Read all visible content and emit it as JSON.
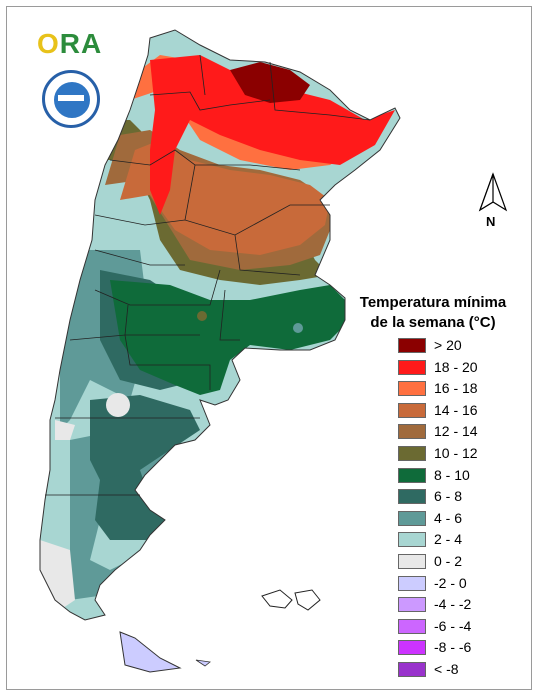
{
  "logo": {
    "text_o": "O",
    "text_rest": "RA"
  },
  "legend": {
    "title_line1": "Temperatura mínima",
    "title_line2": "de la semana (°C)",
    "items": [
      {
        "label": "> 20",
        "color": "#8b0000"
      },
      {
        "label": "18 - 20",
        "color": "#ff1a1a"
      },
      {
        "label": "16 - 18",
        "color": "#ff7040"
      },
      {
        "label": "14 - 16",
        "color": "#c86a3a"
      },
      {
        "label": "12 - 14",
        "color": "#a06a3c"
      },
      {
        "label": "10 - 12",
        "color": "#6b6a32"
      },
      {
        "label": "8 - 10",
        "color": "#0f6b3a"
      },
      {
        "label": "6 - 8",
        "color": "#2f6a62"
      },
      {
        "label": "4 - 6",
        "color": "#5f9a98"
      },
      {
        "label": "2 - 4",
        "color": "#a8d6d2"
      },
      {
        "label": "0 - 2",
        "color": "#e8e8e8"
      },
      {
        "label": "-2 - 0",
        "color": "#ccccff"
      },
      {
        "label": "-4 - -2",
        "color": "#cc99ff"
      },
      {
        "label": "-6 - -4",
        "color": "#cc66ff"
      },
      {
        "label": "-8 - -6",
        "color": "#cc33ff"
      },
      {
        "label": "< -8",
        "color": "#9933cc"
      }
    ]
  },
  "north_arrow": {
    "label": "N"
  }
}
